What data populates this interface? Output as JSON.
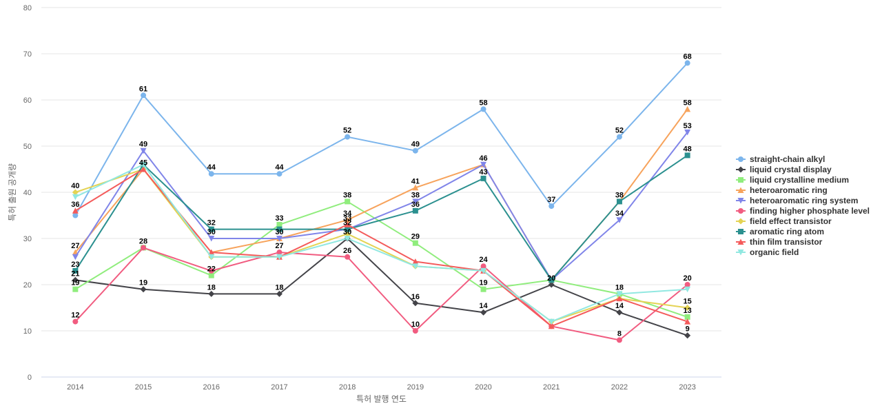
{
  "chart_data": {
    "type": "line",
    "title": "",
    "xlabel": "특허 발행 연도",
    "ylabel": "특허 출원 공개량",
    "ylim": [
      0,
      80
    ],
    "yticks": [
      0,
      10,
      20,
      30,
      40,
      50,
      60,
      70,
      80
    ],
    "grid": true,
    "legend_position": "right",
    "categories": [
      "2014",
      "2015",
      "2016",
      "2017",
      "2018",
      "2019",
      "2020",
      "2021",
      "2022",
      "2023"
    ],
    "series": [
      {
        "name": "straight-chain alkyl",
        "color": "#7cb5ec",
        "marker": "circle",
        "values": [
          35,
          61,
          44,
          44,
          52,
          49,
          58,
          37,
          52,
          68
        ],
        "labels": [
          false,
          true,
          true,
          true,
          true,
          true,
          true,
          true,
          true,
          true
        ]
      },
      {
        "name": "liquid crystal display",
        "color": "#434348",
        "marker": "diamond",
        "values": [
          21,
          19,
          18,
          18,
          30,
          16,
          14,
          20,
          14,
          9
        ],
        "labels": [
          true,
          true,
          true,
          true,
          true,
          true,
          true,
          true,
          true,
          true
        ]
      },
      {
        "name": "liquid crystalline medium",
        "color": "#90ed7d",
        "marker": "square",
        "values": [
          19,
          28,
          22,
          33,
          38,
          29,
          19,
          21,
          18,
          13
        ],
        "labels": [
          true,
          false,
          true,
          true,
          true,
          true,
          true,
          false,
          true,
          true
        ]
      },
      {
        "name": "heteroaromatic ring",
        "color": "#f7a35c",
        "marker": "triangle",
        "values": [
          27,
          45,
          27,
          30,
          34,
          41,
          46,
          21,
          38,
          58
        ],
        "labels": [
          true,
          false,
          false,
          false,
          true,
          true,
          false,
          false,
          false,
          true
        ]
      },
      {
        "name": "heteroaromatic ring system",
        "color": "#8085e9",
        "marker": "triangle-down",
        "values": [
          26,
          49,
          30,
          30,
          32,
          38,
          46,
          21,
          34,
          53
        ],
        "labels": [
          false,
          true,
          true,
          true,
          false,
          true,
          true,
          false,
          true,
          true
        ]
      },
      {
        "name": "finding higher phosphate level",
        "color": "#f15c80",
        "marker": "circle",
        "values": [
          12,
          28,
          23,
          27,
          26,
          10,
          24,
          11,
          8,
          20
        ],
        "labels": [
          true,
          true,
          false,
          true,
          true,
          true,
          true,
          false,
          true,
          true
        ]
      },
      {
        "name": "field effect transistor",
        "color": "#e4d354",
        "marker": "diamond",
        "values": [
          40,
          45,
          26,
          26,
          31,
          24,
          23,
          12,
          17,
          15
        ],
        "labels": [
          true,
          false,
          false,
          false,
          false,
          false,
          false,
          false,
          false,
          true
        ]
      },
      {
        "name": "aromatic ring atom",
        "color": "#2b908f",
        "marker": "square",
        "values": [
          23,
          46,
          32,
          32,
          32,
          36,
          43,
          21,
          38,
          48
        ],
        "labels": [
          true,
          false,
          true,
          false,
          true,
          true,
          true,
          false,
          true,
          true
        ]
      },
      {
        "name": "thin film transistor",
        "color": "#f45b5b",
        "marker": "triangle",
        "values": [
          36,
          45,
          27,
          26,
          33,
          25,
          23,
          11,
          17,
          12
        ],
        "labels": [
          true,
          true,
          false,
          false,
          true,
          false,
          false,
          false,
          false,
          false
        ]
      },
      {
        "name": "organic field",
        "color": "#91e8e1",
        "marker": "triangle-down",
        "values": [
          39,
          46,
          26,
          26,
          30,
          24,
          23,
          12,
          18,
          19
        ],
        "labels": [
          false,
          false,
          false,
          false,
          false,
          false,
          false,
          false,
          false,
          false
        ]
      }
    ]
  }
}
